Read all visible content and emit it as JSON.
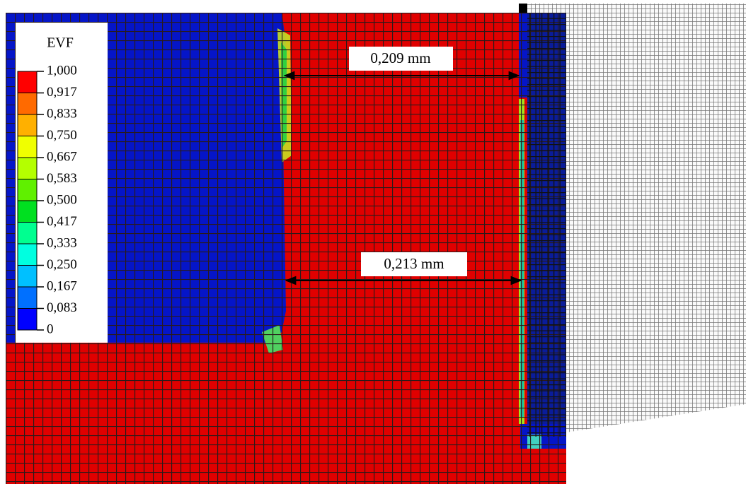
{
  "legend": {
    "title": "EVF",
    "labels": [
      "1,000",
      "0,917",
      "0,833",
      "0,750",
      "0,667",
      "0,583",
      "0,500",
      "0,417",
      "0,333",
      "0,250",
      "0,167",
      "0,083",
      "0"
    ]
  },
  "dimensions": [
    {
      "label": "0,209 mm"
    },
    {
      "label": "0,213 mm"
    }
  ]
}
